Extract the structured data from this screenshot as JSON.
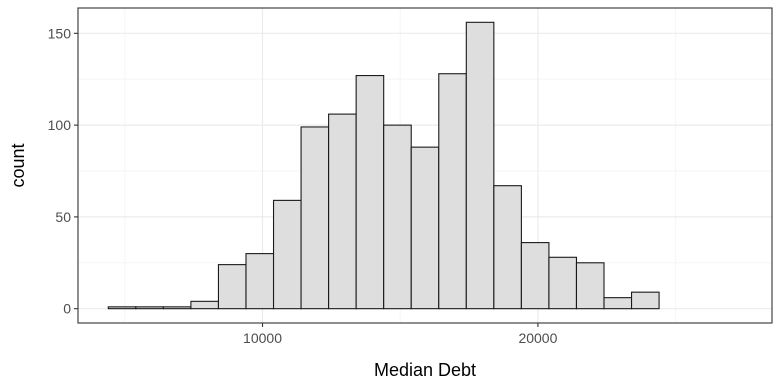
{
  "chart_data": {
    "type": "bar",
    "xlabel": "Median Debt",
    "ylabel": "count",
    "xlim": [
      3300,
      28500
    ],
    "ylim": [
      -7.8,
      163.8
    ],
    "x_ticks": [
      10000,
      20000
    ],
    "x_minor_ticks": [
      5000,
      15000,
      25000
    ],
    "y_ticks": [
      0,
      50,
      100,
      150
    ],
    "y_minor_ticks": [
      25,
      75,
      125
    ],
    "grid": true,
    "bin_width": 1000,
    "bins": [
      {
        "x0": 4400,
        "x1": 5400,
        "count": 1
      },
      {
        "x0": 5400,
        "x1": 6400,
        "count": 1
      },
      {
        "x0": 6400,
        "x1": 7400,
        "count": 1
      },
      {
        "x0": 7400,
        "x1": 8400,
        "count": 4
      },
      {
        "x0": 8400,
        "x1": 9400,
        "count": 24
      },
      {
        "x0": 9400,
        "x1": 10400,
        "count": 30
      },
      {
        "x0": 10400,
        "x1": 11400,
        "count": 59
      },
      {
        "x0": 11400,
        "x1": 12400,
        "count": 99
      },
      {
        "x0": 12400,
        "x1": 13400,
        "count": 106
      },
      {
        "x0": 13400,
        "x1": 14400,
        "count": 127
      },
      {
        "x0": 14400,
        "x1": 15400,
        "count": 100
      },
      {
        "x0": 15400,
        "x1": 16400,
        "count": 88
      },
      {
        "x0": 16400,
        "x1": 17400,
        "count": 128
      },
      {
        "x0": 17400,
        "x1": 18400,
        "count": 156
      },
      {
        "x0": 18400,
        "x1": 19400,
        "count": 67
      },
      {
        "x0": 19400,
        "x1": 20400,
        "count": 36
      },
      {
        "x0": 20400,
        "x1": 21400,
        "count": 28
      },
      {
        "x0": 21400,
        "x1": 22400,
        "count": 25
      },
      {
        "x0": 22400,
        "x1": 23400,
        "count": 6
      },
      {
        "x0": 23400,
        "x1": 24400,
        "count": 9
      }
    ],
    "colors": {
      "bar_fill": "#dedede",
      "bar_stroke": "#1a1a1a",
      "grid_major": "#ebebeb",
      "grid_minor": "#f5f5f5",
      "panel_border": "#333333",
      "tick_text": "#4d4d4d"
    }
  }
}
